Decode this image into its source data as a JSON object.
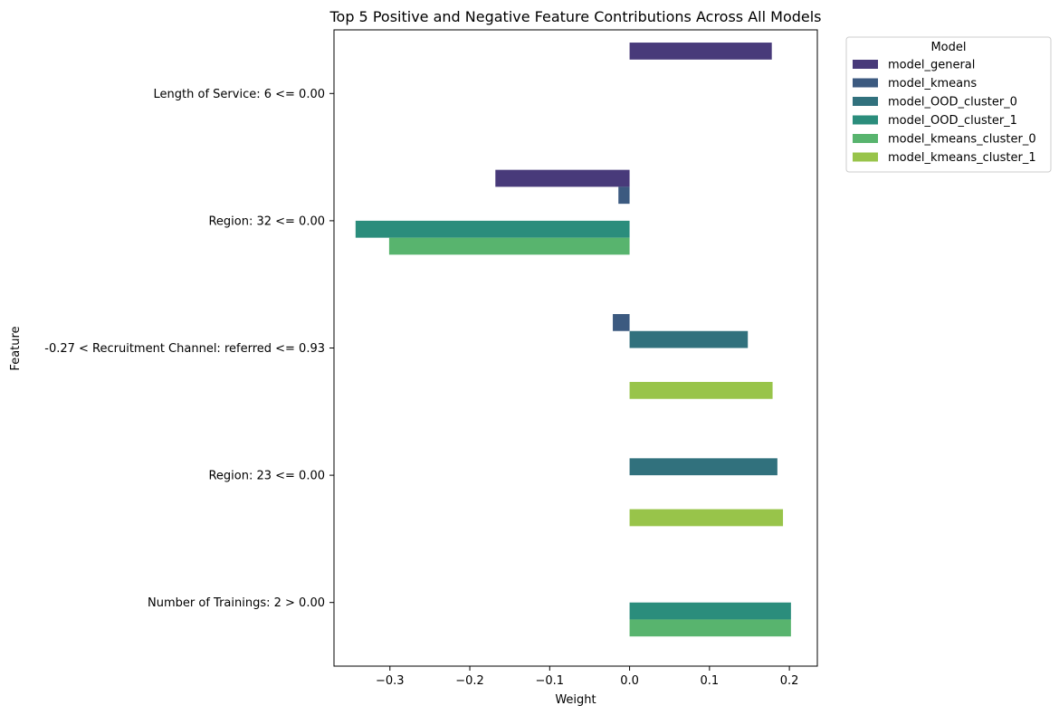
{
  "chart_data": {
    "type": "bar",
    "orientation": "horizontal",
    "title": "Top 5 Positive and Negative Feature Contributions Across All Models",
    "xlabel": "Weight",
    "ylabel": "Feature",
    "xlim": [
      -0.37,
      0.235
    ],
    "xticks": [
      -0.3,
      -0.2,
      -0.1,
      0.0,
      0.1,
      0.2
    ],
    "xtick_labels": [
      "−0.3",
      "−0.2",
      "−0.1",
      "0.0",
      "0.1",
      "0.2"
    ],
    "grid": false,
    "legend": {
      "title": "Model",
      "placement": "upper right outside"
    },
    "categories": [
      "Length of Service: 6 <= 0.00",
      "Region: 32 <= 0.00",
      "-0.27 < Recruitment Channel: referred <= 0.93",
      "Region: 23 <= 0.00",
      "Number of Trainings: 2 > 0.00"
    ],
    "series": [
      {
        "name": "model_general",
        "color": "#483a7a",
        "values": [
          0.178,
          -0.168,
          null,
          null,
          null
        ]
      },
      {
        "name": "model_kmeans",
        "color": "#3c5a80",
        "values": [
          null,
          -0.014,
          -0.021,
          null,
          null
        ]
      },
      {
        "name": "model_OOD_cluster_0",
        "color": "#31717d",
        "values": [
          null,
          null,
          0.148,
          0.185,
          null
        ]
      },
      {
        "name": "model_OOD_cluster_1",
        "color": "#2b8d7c",
        "values": [
          null,
          -0.343,
          null,
          null,
          0.202
        ]
      },
      {
        "name": "model_kmeans_cluster_0",
        "color": "#58b46e",
        "values": [
          null,
          -0.301,
          null,
          null,
          0.202
        ]
      },
      {
        "name": "model_kmeans_cluster_1",
        "color": "#98c44a",
        "values": [
          null,
          null,
          0.179,
          0.192,
          null
        ]
      }
    ]
  }
}
